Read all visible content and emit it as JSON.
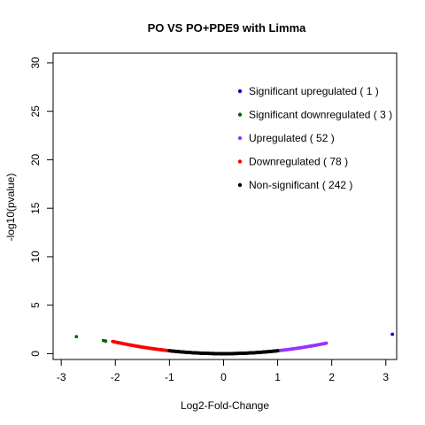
{
  "chart_data": {
    "type": "scatter",
    "title": "PO VS PO+PDE9 with Limma",
    "xlabel": "Log2-Fold-Change",
    "ylabel": "-log10(pvalue)",
    "xlim": [
      -3.15,
      3.2
    ],
    "ylim": [
      -0.6,
      31
    ],
    "x_ticks": [
      -3,
      -2,
      -1,
      0,
      1,
      2,
      3
    ],
    "y_ticks": [
      0,
      5,
      10,
      15,
      20,
      25,
      30
    ],
    "grid": false,
    "legend_position": "top-right",
    "series": [
      {
        "name": "Significant upregulated ( 1 )",
        "color": "#0000cc",
        "points": [
          [
            3.12,
            2.0
          ]
        ]
      },
      {
        "name": "Significant downregulated ( 3 )",
        "color": "#006400",
        "points": [
          [
            -2.72,
            1.75
          ],
          [
            -2.22,
            1.35
          ],
          [
            -2.18,
            1.3
          ]
        ]
      },
      {
        "name": "Upregulated ( 52 )",
        "color": "#9933ff",
        "curve": {
          "x_from": 1.0,
          "x_to": 1.9,
          "count": 52,
          "a": 0.3,
          "b": 0.18
        }
      },
      {
        "name": "Downregulated ( 78 )",
        "color": "#ff0000",
        "curve": {
          "x_from": -2.05,
          "x_to": -1.0,
          "count": 78,
          "a": 0.3,
          "b": 0.18
        }
      },
      {
        "name": "Non-significant ( 242 )",
        "color": "#000000",
        "curve": {
          "x_from": -1.0,
          "x_to": 1.0,
          "count": 242,
          "a": 0.3,
          "b": 0.18
        }
      }
    ]
  }
}
